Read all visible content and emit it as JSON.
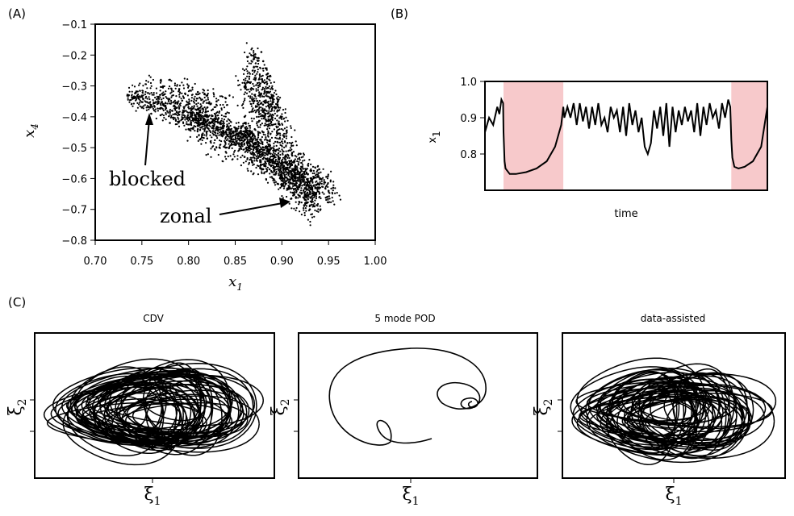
{
  "chart_data": [
    {
      "panel_label": "(A)",
      "type": "scatter",
      "xlabel": "x",
      "xlabel_sub": "1",
      "ylabel": "x",
      "ylabel_sub": "4",
      "xlim": [
        0.7,
        1.0
      ],
      "ylim": [
        -0.8,
        -0.1
      ],
      "xticks": [
        0.7,
        0.75,
        0.8,
        0.85,
        0.9,
        0.95,
        1.0
      ],
      "xtick_labels": [
        "0.70",
        "0.75",
        "0.80",
        "0.85",
        "0.90",
        "0.95",
        "1.00"
      ],
      "yticks": [
        -0.8,
        -0.7,
        -0.6,
        -0.5,
        -0.4,
        -0.3,
        -0.2,
        -0.1
      ],
      "ytick_labels": [
        "−0.8",
        "−0.7",
        "−0.6",
        "−0.5",
        "−0.4",
        "−0.3",
        "−0.2",
        "−0.1"
      ],
      "annotations": [
        {
          "text": "blocked",
          "xy": [
            0.757,
            -0.41
          ]
        },
        {
          "text": "zonal",
          "xy": [
            0.916,
            -0.675
          ]
        }
      ],
      "points": [
        [
          0.736,
          -0.33
        ],
        [
          0.741,
          -0.34
        ],
        [
          0.75,
          -0.352
        ],
        [
          0.76,
          -0.362
        ],
        [
          0.77,
          -0.372
        ],
        [
          0.78,
          -0.383
        ],
        [
          0.79,
          -0.393
        ],
        [
          0.8,
          -0.403
        ],
        [
          0.81,
          -0.413
        ],
        [
          0.82,
          -0.424
        ],
        [
          0.83,
          -0.435
        ],
        [
          0.84,
          -0.447
        ],
        [
          0.85,
          -0.46
        ],
        [
          0.86,
          -0.474
        ],
        [
          0.87,
          -0.49
        ],
        [
          0.88,
          -0.508
        ],
        [
          0.89,
          -0.528
        ],
        [
          0.9,
          -0.55
        ],
        [
          0.91,
          -0.578
        ],
        [
          0.92,
          -0.61
        ],
        [
          0.93,
          -0.65
        ],
        [
          0.935,
          -0.69
        ],
        [
          0.75,
          -0.37
        ],
        [
          0.77,
          -0.395
        ],
        [
          0.79,
          -0.415
        ],
        [
          0.81,
          -0.44
        ],
        [
          0.83,
          -0.462
        ],
        [
          0.85,
          -0.49
        ],
        [
          0.87,
          -0.52
        ],
        [
          0.89,
          -0.55
        ],
        [
          0.91,
          -0.6
        ],
        [
          0.93,
          -0.63
        ],
        [
          0.94,
          -0.62
        ],
        [
          0.95,
          -0.64
        ],
        [
          0.955,
          -0.63
        ],
        [
          0.78,
          -0.28
        ],
        [
          0.79,
          -0.31
        ],
        [
          0.8,
          -0.3
        ],
        [
          0.81,
          -0.32
        ],
        [
          0.82,
          -0.33
        ],
        [
          0.83,
          -0.35
        ],
        [
          0.84,
          -0.34
        ],
        [
          0.86,
          -0.29
        ],
        [
          0.865,
          -0.27
        ],
        [
          0.87,
          -0.24
        ],
        [
          0.875,
          -0.21
        ],
        [
          0.878,
          -0.19
        ],
        [
          0.88,
          -0.22
        ],
        [
          0.885,
          -0.26
        ],
        [
          0.89,
          -0.31
        ],
        [
          0.895,
          -0.36
        ],
        [
          0.9,
          -0.4
        ],
        [
          0.87,
          -0.35
        ],
        [
          0.88,
          -0.38
        ],
        [
          0.89,
          -0.34
        ],
        [
          0.86,
          -0.4
        ],
        [
          0.8,
          -0.355
        ],
        [
          0.82,
          -0.37
        ],
        [
          0.84,
          -0.39
        ],
        [
          0.86,
          -0.42
        ],
        [
          0.88,
          -0.45
        ],
        [
          0.9,
          -0.48
        ],
        [
          0.92,
          -0.52
        ],
        [
          0.94,
          -0.57
        ],
        [
          0.93,
          -0.7
        ],
        [
          0.925,
          -0.68
        ],
        [
          0.915,
          -0.66
        ],
        [
          0.9,
          -0.6
        ],
        [
          0.88,
          -0.57
        ],
        [
          0.86,
          -0.53
        ],
        [
          0.84,
          -0.5
        ],
        [
          0.82,
          -0.47
        ],
        [
          0.8,
          -0.44
        ],
        [
          0.78,
          -0.42
        ],
        [
          0.76,
          -0.39
        ]
      ]
    },
    {
      "panel_label": "(B)",
      "type": "line",
      "xlabel": "time",
      "ylabel": "x",
      "ylabel_sub": "1",
      "ylim": [
        0.7,
        1.0
      ],
      "yticks": [
        0.8,
        0.9,
        1.0
      ],
      "ytick_labels": [
        "0.8",
        "0.9",
        "1.0"
      ],
      "t_range": [
        0,
        1000
      ],
      "shaded_intervals": [
        [
          90,
          380
        ],
        [
          1195,
          1370
        ]
      ],
      "shade_color": "#f7c9cb",
      "x": [
        0,
        20,
        40,
        60,
        70,
        80,
        88,
        90,
        95,
        100,
        120,
        150,
        200,
        250,
        300,
        340,
        370,
        380,
        385,
        400,
        415,
        430,
        445,
        460,
        475,
        490,
        505,
        520,
        535,
        550,
        565,
        580,
        595,
        610,
        625,
        640,
        655,
        670,
        685,
        700,
        715,
        730,
        745,
        760,
        775,
        790,
        805,
        820,
        835,
        850,
        865,
        880,
        895,
        910,
        925,
        940,
        955,
        970,
        985,
        1000,
        1015,
        1030,
        1045,
        1060,
        1075,
        1090,
        1105,
        1120,
        1135,
        1150,
        1165,
        1180,
        1190,
        1195,
        1200,
        1210,
        1230,
        1260,
        1300,
        1340,
        1370
      ],
      "y": [
        0.86,
        0.9,
        0.88,
        0.93,
        0.91,
        0.95,
        0.94,
        0.86,
        0.78,
        0.76,
        0.745,
        0.745,
        0.75,
        0.76,
        0.78,
        0.82,
        0.88,
        0.93,
        0.9,
        0.93,
        0.9,
        0.94,
        0.88,
        0.94,
        0.89,
        0.93,
        0.87,
        0.93,
        0.88,
        0.94,
        0.88,
        0.9,
        0.86,
        0.93,
        0.9,
        0.92,
        0.86,
        0.93,
        0.85,
        0.94,
        0.88,
        0.92,
        0.86,
        0.9,
        0.82,
        0.8,
        0.83,
        0.92,
        0.87,
        0.93,
        0.85,
        0.94,
        0.82,
        0.93,
        0.86,
        0.92,
        0.88,
        0.93,
        0.89,
        0.92,
        0.86,
        0.94,
        0.85,
        0.93,
        0.88,
        0.94,
        0.9,
        0.92,
        0.87,
        0.94,
        0.9,
        0.95,
        0.93,
        0.84,
        0.79,
        0.765,
        0.76,
        0.765,
        0.78,
        0.82,
        0.93
      ]
    },
    {
      "panel_label": "(C)",
      "type": "line",
      "subplots": [
        {
          "title": "CDV",
          "xlabel": "ξ",
          "xlabel_sub": "1",
          "ylabel": "ξ",
          "ylabel_sub": "2"
        },
        {
          "title": "5 mode POD",
          "xlabel": "ξ",
          "xlabel_sub": "1",
          "ylabel": "ξ",
          "ylabel_sub": "2"
        },
        {
          "title": "data-assisted",
          "xlabel": "ξ",
          "xlabel_sub": "1",
          "ylabel": "ξ",
          "ylabel_sub": "2"
        }
      ]
    }
  ]
}
